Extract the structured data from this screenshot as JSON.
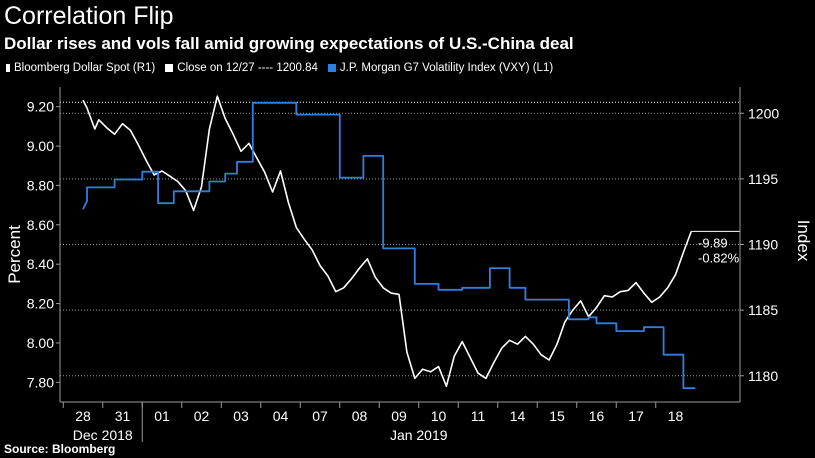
{
  "title": "Correlation Flip",
  "subtitle": "Dollar rises and vols fall amid growing expectations of U.S.-China deal",
  "legend": [
    {
      "label": "Bloomberg Dollar Spot  (R1)",
      "color": "#ffffff"
    },
    {
      "label": "Close on 12/27 ---- 1200.84",
      "color": "#ffffff"
    },
    {
      "label": "J.P. Morgan G7 Volatility Index (VXY)  (L1)",
      "color": "#2f7fe0"
    }
  ],
  "source": "Source: Bloomberg",
  "colors": {
    "background": "#000000",
    "dollar": "#ffffff",
    "vxy": "#2f7fe0",
    "grid": "#9a9a9a"
  },
  "chart_data": {
    "type": "line",
    "x_ticks": [
      "28",
      "31",
      "01",
      "02",
      "03",
      "04",
      "07",
      "08",
      "09",
      "10",
      "11",
      "14",
      "15",
      "16",
      "17",
      "18"
    ],
    "x_group_labels": [
      "Dec 2018",
      "Jan 2019"
    ],
    "left_axis": {
      "label": "Percent",
      "range": [
        7.7,
        9.3
      ],
      "ticks": [
        "7.80",
        "8.00",
        "8.20",
        "8.40",
        "8.60",
        "8.80",
        "9.00",
        "9.20"
      ]
    },
    "right_axis": {
      "label": "Index",
      "range": [
        1178,
        1202
      ],
      "ticks": [
        "1180",
        "1185",
        "1190",
        "1195",
        "1200"
      ]
    },
    "reference_line": {
      "label": "Close on 12/27",
      "value": 1200.84
    },
    "annotation": {
      "change": "-9.89",
      "pct_change": "-0.82%"
    },
    "grid": true,
    "series": [
      {
        "name": "Bloomberg Dollar Spot",
        "axis": "right",
        "x": [
          0.0,
          0.1,
          0.2,
          0.3,
          0.4,
          0.6,
          0.8,
          1.0,
          1.2,
          1.4,
          1.6,
          1.8,
          2.0,
          2.2,
          2.4,
          2.6,
          2.8,
          3.0,
          3.2,
          3.4,
          3.6,
          3.8,
          4.0,
          4.2,
          4.4,
          4.6,
          4.8,
          5.0,
          5.2,
          5.4,
          5.6,
          5.8,
          6.0,
          6.2,
          6.4,
          6.6,
          6.8,
          7.0,
          7.2,
          7.4,
          7.6,
          7.8,
          8.0,
          8.2,
          8.4,
          8.6,
          8.8,
          9.0,
          9.2,
          9.4,
          9.6,
          9.8,
          10.0,
          10.2,
          10.4,
          10.6,
          10.8,
          11.0,
          11.2,
          11.4,
          11.6,
          11.8,
          12.0,
          12.2,
          12.4,
          12.6,
          12.8,
          13.0,
          13.2,
          13.4,
          13.6,
          13.8,
          14.0,
          14.2,
          14.4,
          14.6,
          14.8,
          15.0,
          15.2,
          15.4
        ],
        "y": [
          1201.0,
          1200.4,
          1199.6,
          1198.8,
          1199.5,
          1198.9,
          1198.4,
          1199.2,
          1198.7,
          1197.6,
          1196.4,
          1195.3,
          1195.6,
          1195.2,
          1194.8,
          1194.1,
          1192.6,
          1194.4,
          1198.8,
          1201.3,
          1199.6,
          1198.4,
          1197.1,
          1197.7,
          1196.6,
          1195.5,
          1194.0,
          1195.6,
          1193.2,
          1191.3,
          1190.4,
          1189.6,
          1188.4,
          1187.6,
          1186.4,
          1186.7,
          1187.4,
          1188.2,
          1188.9,
          1187.5,
          1186.7,
          1186.3,
          1186.2,
          1181.8,
          1179.8,
          1180.5,
          1180.3,
          1180.7,
          1179.2,
          1181.5,
          1182.6,
          1181.4,
          1180.2,
          1179.8,
          1181.0,
          1182.1,
          1182.7,
          1182.4,
          1183.0,
          1182.4,
          1181.6,
          1181.2,
          1182.4,
          1184.1,
          1185.0,
          1185.7,
          1184.5,
          1185.2,
          1186.1,
          1186.0,
          1186.4,
          1186.5,
          1187.1,
          1186.3,
          1185.6,
          1186.0,
          1186.7,
          1187.7,
          1189.4,
          1191.0
        ]
      },
      {
        "name": "J.P. Morgan G7 Volatility Index (VXY)",
        "axis": "left",
        "x": [
          0.0,
          0.1,
          0.1,
          0.8,
          0.8,
          1.5,
          1.5,
          1.9,
          1.9,
          2.3,
          2.3,
          3.2,
          3.2,
          3.6,
          3.6,
          3.9,
          3.9,
          4.3,
          4.3,
          5.4,
          5.4,
          6.5,
          6.5,
          7.1,
          7.1,
          7.6,
          7.6,
          8.4,
          8.4,
          9.0,
          9.0,
          9.6,
          9.6,
          10.3,
          10.3,
          10.8,
          10.8,
          11.2,
          11.2,
          12.3,
          12.3,
          12.8,
          12.8,
          13.0,
          13.0,
          13.5,
          13.5,
          14.2,
          14.2,
          14.7,
          14.7,
          15.2,
          15.2,
          15.5
        ],
        "y": [
          8.68,
          8.72,
          8.79,
          8.79,
          8.83,
          8.83,
          8.87,
          8.87,
          8.71,
          8.71,
          8.77,
          8.77,
          8.82,
          8.82,
          8.86,
          8.86,
          8.92,
          8.92,
          9.22,
          9.22,
          9.16,
          9.16,
          8.84,
          8.84,
          8.95,
          8.95,
          8.48,
          8.48,
          8.3,
          8.3,
          8.27,
          8.27,
          8.28,
          8.28,
          8.38,
          8.38,
          8.28,
          8.28,
          8.22,
          8.22,
          8.12,
          8.12,
          8.13,
          8.13,
          8.1,
          8.1,
          8.06,
          8.06,
          8.08,
          8.08,
          7.94,
          7.94,
          7.77,
          7.77
        ]
      }
    ]
  }
}
